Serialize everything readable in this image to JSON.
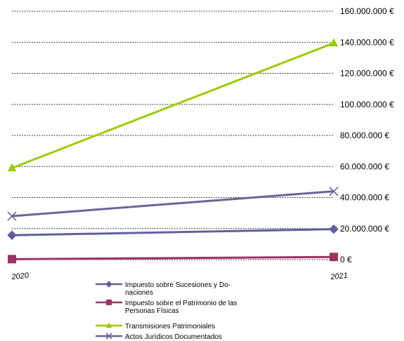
{
  "chart_data": {
    "type": "line",
    "x": [
      "2020",
      "2021"
    ],
    "ylim": [
      0,
      160000000
    ],
    "y_ticks": [
      {
        "value": 0,
        "label": "0 €"
      },
      {
        "value": 20000000,
        "label": "20.000.000 €"
      },
      {
        "value": 40000000,
        "label": "40.000.000 €"
      },
      {
        "value": 60000000,
        "label": "60.000.000 €"
      },
      {
        "value": 80000000,
        "label": "80.000.000 €"
      },
      {
        "value": 100000000,
        "label": "100.000.000 €"
      },
      {
        "value": 120000000,
        "label": "120.000.000 €"
      },
      {
        "value": 140000000,
        "label": "140.000.000 €"
      },
      {
        "value": 160000000,
        "label": "160.000.000 €"
      }
    ],
    "y_axis_position": "right",
    "grid": true,
    "grid_style": "dotted",
    "legend_position": "bottom",
    "series": [
      {
        "name": "Impuesto sobre Sucesiones y Do-naciones",
        "name_lines": [
          "Impuesto sobre Sucesiones y Do-",
          "naciones"
        ],
        "values": [
          15700000,
          19600000
        ],
        "color": "#5f5f9f",
        "marker": "diamond"
      },
      {
        "name": "Impuesto sobre el Patrimonio de las Personas Físicas",
        "name_lines": [
          "Impuesto sobre el Patrimonio de las",
          "Personas Físicas"
        ],
        "values": [
          300000,
          1700000
        ],
        "color": "#993366",
        "marker": "square"
      },
      {
        "name": "Transmisiones Patrimoniales",
        "name_lines": [
          "Transmisiones Patrimoniales"
        ],
        "values": [
          59000000,
          139500000
        ],
        "color": "#99cc00",
        "marker": "triangle"
      },
      {
        "name": "Actos Jurídicos Documentados",
        "name_lines": [
          "Actos Jurídicos Documentados"
        ],
        "values": [
          28000000,
          44000000
        ],
        "color": "#666699",
        "marker": "x"
      }
    ]
  }
}
